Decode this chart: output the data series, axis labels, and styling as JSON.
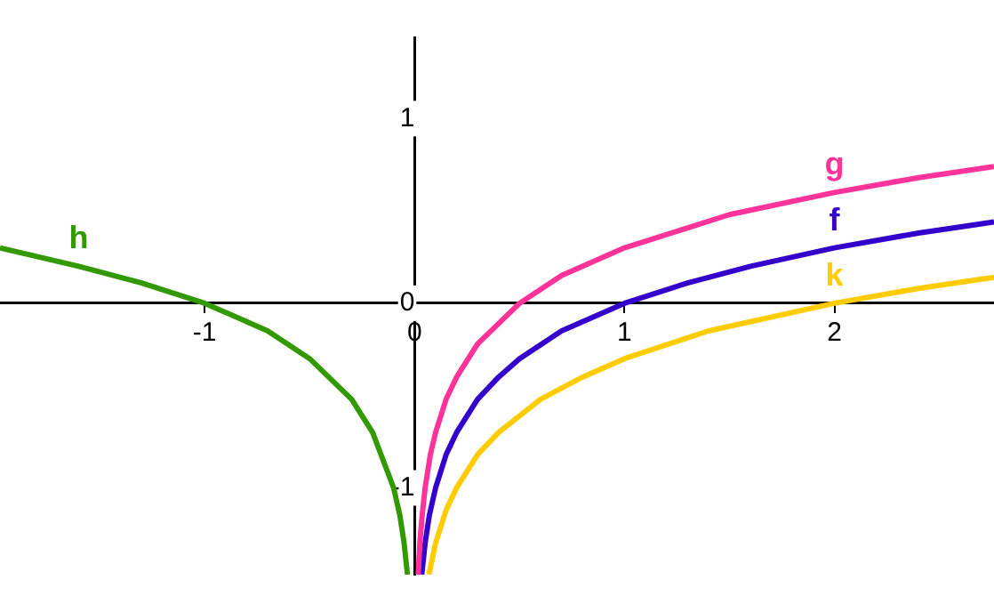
{
  "chart_data": {
    "type": "line",
    "xlim": [
      -1.975,
      2.76
    ],
    "ylim": [
      -1.47,
      1.44
    ],
    "xticks": [
      -1,
      0,
      1,
      2
    ],
    "yticks": [
      -1,
      0,
      1
    ],
    "grid": false,
    "legend": false,
    "marker": "none",
    "line_style": "solid",
    "series": [
      {
        "name": "h",
        "color": "#339900",
        "x": [
          -1.975,
          -1.6,
          -1.3,
          -1,
          -0.7,
          -0.5,
          -0.3,
          -0.2,
          -0.1,
          -0.07,
          -0.05,
          -0.034
        ],
        "values": [
          0.3,
          0.2,
          0.11,
          0,
          -0.15,
          -0.3,
          -0.52,
          -0.7,
          -1,
          -1.15,
          -1.3,
          -1.47
        ]
      },
      {
        "name": "g",
        "color": "#ff3399",
        "x": [
          0.017,
          0.025,
          0.035,
          0.05,
          0.075,
          0.1,
          0.15,
          0.2,
          0.3,
          0.5,
          0.7,
          1,
          1.5,
          2,
          2.4,
          2.76
        ],
        "values": [
          -1.47,
          -1.3,
          -1.16,
          -1.0,
          -0.82,
          -0.7,
          -0.52,
          -0.4,
          -0.22,
          0,
          0.15,
          0.3,
          0.48,
          0.6,
          0.68,
          0.74
        ]
      },
      {
        "name": "f",
        "color": "#3300cc",
        "x": [
          0.034,
          0.05,
          0.07,
          0.1,
          0.15,
          0.2,
          0.3,
          0.4,
          0.5,
          0.7,
          1,
          1.3,
          1.6,
          2,
          2.4,
          2.76
        ],
        "values": [
          -1.47,
          -1.3,
          -1.15,
          -1,
          -0.82,
          -0.7,
          -0.52,
          -0.4,
          -0.3,
          -0.15,
          0,
          0.11,
          0.2,
          0.3,
          0.38,
          0.44
        ]
      },
      {
        "name": "k",
        "color": "#ffcc00",
        "x": [
          0.068,
          0.1,
          0.15,
          0.2,
          0.3,
          0.4,
          0.6,
          0.8,
          1,
          1.4,
          2,
          2.4,
          2.76
        ],
        "values": [
          -1.47,
          -1.3,
          -1.12,
          -1.0,
          -0.82,
          -0.7,
          -0.52,
          -0.4,
          -0.3,
          -0.15,
          0,
          0.08,
          0.14
        ]
      }
    ]
  }
}
